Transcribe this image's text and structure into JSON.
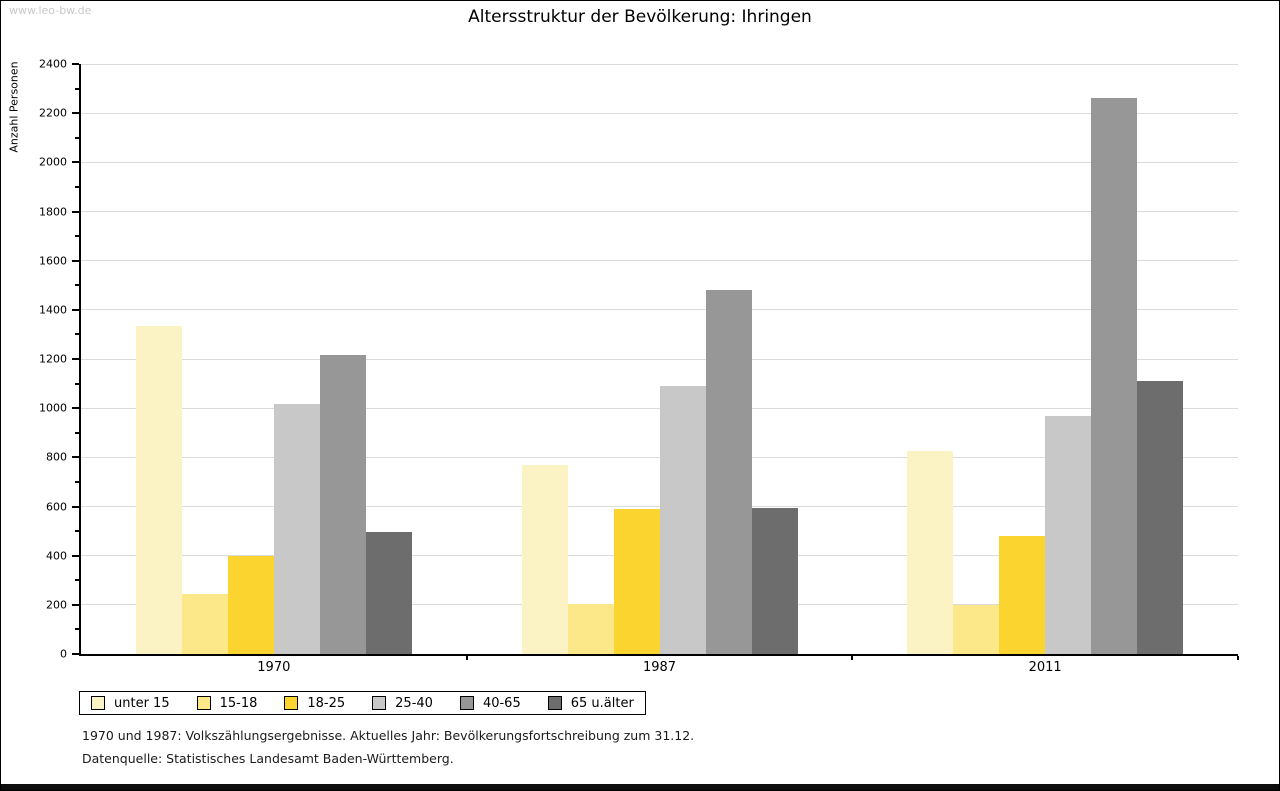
{
  "watermark": "www.leo-bw.de",
  "title": "Altersstruktur der Bevölkerung: Ihringen",
  "ylabel": "Anzahl Personen",
  "footer": {
    "line1": "1970 und 1987: Volkszählungsergebnisse. Aktuelles Jahr: Bevölkerungsfortschreibung zum 31.12.",
    "line2": "Datenquelle: Statistisches Landesamt Baden-Württemberg."
  },
  "chart_data": {
    "type": "bar",
    "title": "Altersstruktur der Bevölkerung: Ihringen",
    "xlabel": "",
    "ylabel": "Anzahl Personen",
    "categories": [
      "1970",
      "1987",
      "2011"
    ],
    "series": [
      {
        "name": "unter 15",
        "color": "#FBF3C4",
        "values": [
          1335,
          770,
          825
        ]
      },
      {
        "name": "15-18",
        "color": "#FCE888",
        "values": [
          245,
          205,
          200
        ]
      },
      {
        "name": "18-25",
        "color": "#FCD42F",
        "values": [
          400,
          590,
          480
        ]
      },
      {
        "name": "25-40",
        "color": "#C8C8C8",
        "values": [
          1015,
          1090,
          970
        ]
      },
      {
        "name": "40-65",
        "color": "#979797",
        "values": [
          1215,
          1480,
          2260
        ]
      },
      {
        "name": "65 u.älter",
        "color": "#6D6D6D",
        "values": [
          495,
          595,
          1110
        ]
      }
    ],
    "ylim": [
      0,
      2400
    ],
    "ytick_step": 200,
    "ytick_minor_step": 100,
    "grid": true,
    "legend_position": "bottom"
  }
}
